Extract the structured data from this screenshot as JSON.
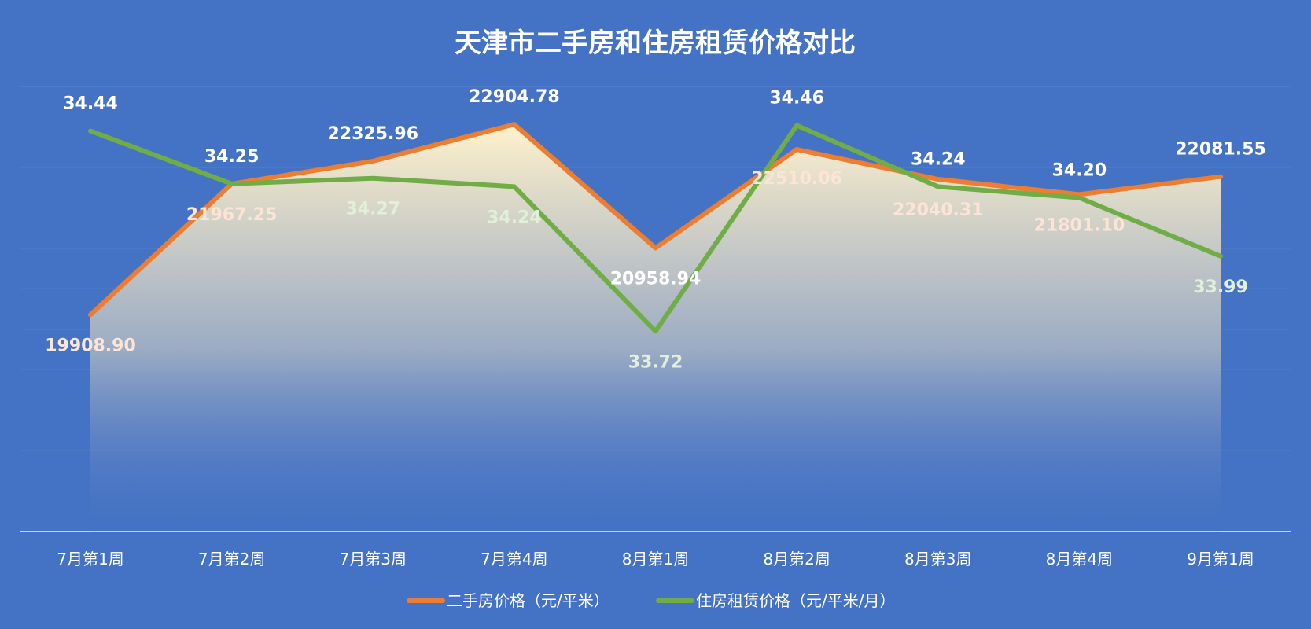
{
  "colors": {
    "background": "#4472c4",
    "secondhand_line": "#ed7d31",
    "rent_line": "#70ad47",
    "area_fill_top": "#fff2cc",
    "label_on_area": "#fce4d6",
    "label_rent_light": "#e2f0d9"
  },
  "chart_data": {
    "type": "line",
    "title": "天津市二手房和住房租赁价格对比",
    "categories": [
      "7月第1周",
      "7月第2周",
      "7月第3周",
      "7月第4周",
      "8月第1周",
      "8月第2周",
      "8月第3周",
      "8月第4周",
      "9月第1周"
    ],
    "series": [
      {
        "name": "二手房价格（元/平米）",
        "values": [
          19908.9,
          21967.25,
          22325.96,
          22904.78,
          20958.94,
          22510.06,
          22040.31,
          21801.1,
          22081.55
        ],
        "labels": [
          "19908.90",
          "21967.25",
          "22325.96",
          "22904.78",
          "20958.94",
          "22510.06",
          "22040.31",
          "21801.10",
          "22081.55"
        ],
        "color": "#ed7d31",
        "area_fill": true
      },
      {
        "name": "住房租赁价格（元/平米/月）",
        "values": [
          34.44,
          34.25,
          34.27,
          34.24,
          33.72,
          34.46,
          34.24,
          34.2,
          33.99
        ],
        "labels": [
          "34.44",
          "34.25",
          "34.27",
          "34.24",
          "33.72",
          "34.46",
          "34.24",
          "34.20",
          "33.99"
        ],
        "color": "#70ad47",
        "secondary_axis": true
      }
    ],
    "primary_axis_range": [
      16500,
      23500
    ],
    "secondary_axis_range": [
      33.0,
      34.6
    ],
    "axis_tick_labels_shown": false,
    "grid": true,
    "legend_position": "bottom"
  }
}
